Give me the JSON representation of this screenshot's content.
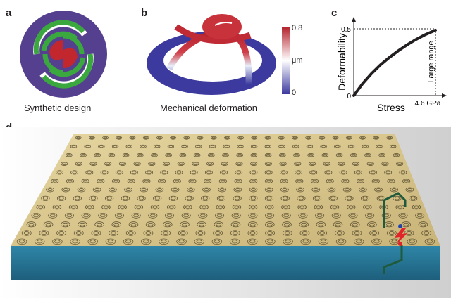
{
  "panels": {
    "a": {
      "letter": "a",
      "caption": "Synthetic design"
    },
    "b": {
      "letter": "b",
      "caption": "Mechanical deformation",
      "colorbar": {
        "max_label": "0.8",
        "unit_label": "μm",
        "min_label": "0",
        "colors": [
          "#3c3a9e",
          "#ffffff",
          "#b3202a"
        ]
      }
    },
    "c": {
      "letter": "c"
    },
    "d": {
      "letter": "d"
    }
  },
  "chart_data": {
    "type": "line",
    "title": "",
    "xlabel": "Stress",
    "ylabel": "Deformability",
    "x_tick_labels": [
      "0",
      "4.6 GPa"
    ],
    "y_tick_labels": [
      "0",
      "0.5"
    ],
    "annotation": "Large range",
    "xlim": [
      0,
      4.6
    ],
    "ylim": [
      0,
      0.5
    ],
    "series": [
      {
        "x": [
          0,
          0.5,
          1.0,
          1.5,
          2.0,
          2.5,
          3.0,
          3.5,
          4.0,
          4.6
        ],
        "values": [
          0,
          0.09,
          0.165,
          0.23,
          0.285,
          0.335,
          0.38,
          0.42,
          0.455,
          0.49
        ]
      }
    ]
  },
  "colors": {
    "ring": "#553f8f",
    "spiral": "#3aa83f",
    "center": "#c1272d",
    "plate": "#d9c48a",
    "base": "#2f7f9e",
    "circuit": "#1f5a3c",
    "lightning": "#e0242a"
  }
}
